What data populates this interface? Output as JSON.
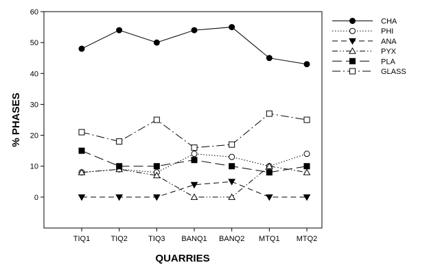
{
  "chart_data": {
    "type": "line",
    "title": "",
    "xlabel": "QUARRIES",
    "ylabel": "% PHASES",
    "categories": [
      "TIQ1",
      "TIQ2",
      "TIQ3",
      "BANQ1",
      "BANQ2",
      "MTQ1",
      "MTQ2"
    ],
    "ylim": [
      -10,
      60
    ],
    "yticks": [
      0,
      10,
      20,
      30,
      40,
      50,
      60
    ],
    "grid": false,
    "legend_position": "right",
    "series": [
      {
        "name": "CHA",
        "values": [
          48,
          54,
          50,
          54,
          55,
          45,
          43
        ],
        "marker": "filled-circle",
        "line_style": "solid"
      },
      {
        "name": "PHI",
        "values": [
          8,
          9,
          8,
          14,
          13,
          10,
          14
        ],
        "marker": "open-circle",
        "line_style": "dotted"
      },
      {
        "name": "ANA",
        "values": [
          0,
          0,
          0,
          4,
          5,
          0,
          0
        ],
        "marker": "filled-triangle-down",
        "line_style": "dashed"
      },
      {
        "name": "PYX",
        "values": [
          8,
          9,
          7,
          0,
          0,
          10,
          8
        ],
        "marker": "open-triangle-up",
        "line_style": "dash-dot-dot"
      },
      {
        "name": "PLA",
        "values": [
          15,
          10,
          10,
          12,
          10,
          8,
          10
        ],
        "marker": "filled-square",
        "line_style": "long-dash"
      },
      {
        "name": "GLASS",
        "values": [
          21,
          18,
          25,
          16,
          17,
          27,
          25
        ],
        "marker": "open-square",
        "line_style": "dash-dot"
      }
    ]
  }
}
